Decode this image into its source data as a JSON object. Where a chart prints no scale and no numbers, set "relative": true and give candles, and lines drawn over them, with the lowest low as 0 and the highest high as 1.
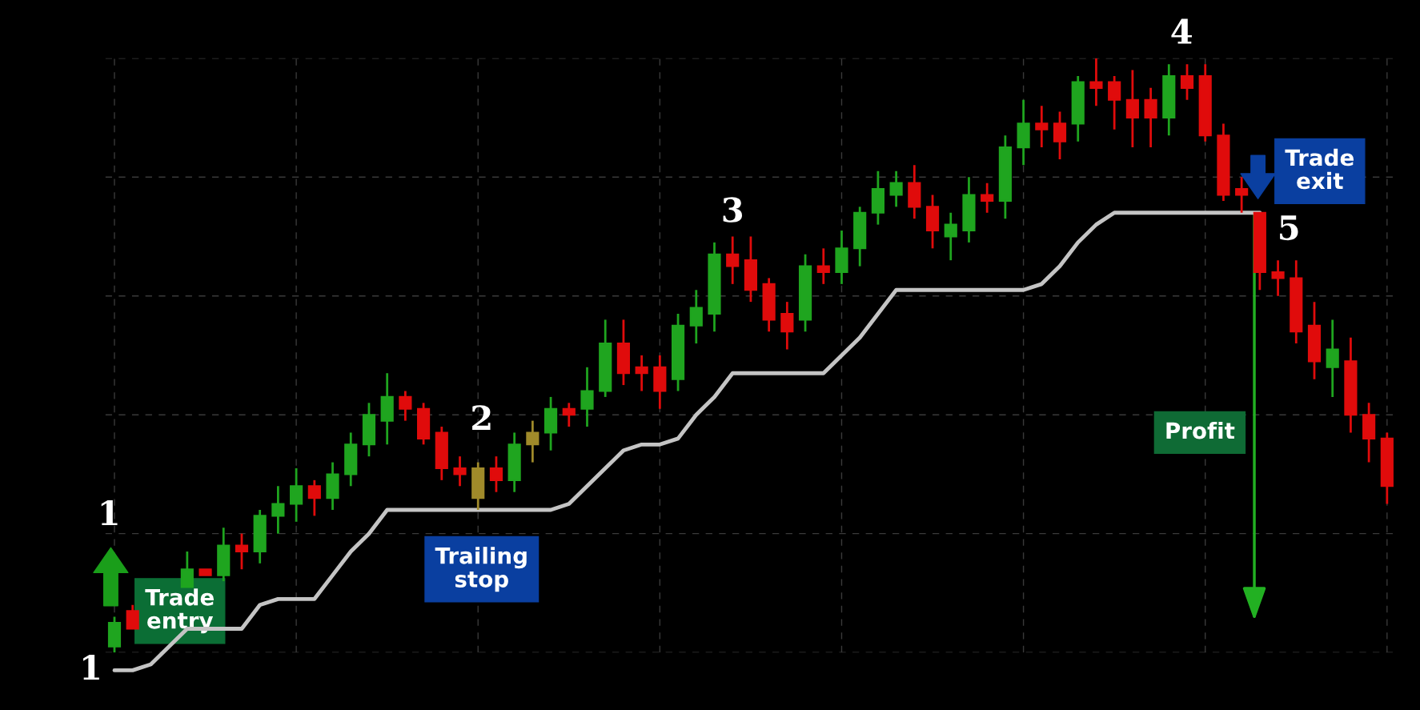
{
  "chart_data": {
    "type": "candlestick",
    "relative": true,
    "grid": true,
    "categories": [
      null,
      null,
      null,
      null,
      null,
      null,
      null,
      null,
      null,
      null,
      null,
      null,
      null,
      null,
      null,
      null,
      null,
      null,
      null,
      null,
      null,
      null,
      null,
      null,
      null,
      null,
      null,
      null,
      null,
      null,
      null,
      null,
      null,
      null,
      null,
      null,
      null,
      null,
      null,
      null,
      null,
      null,
      null,
      null,
      null,
      null,
      null,
      null,
      null,
      null,
      null,
      null,
      null,
      null,
      null,
      null,
      null,
      null,
      null,
      null,
      null,
      null,
      null,
      null,
      null,
      null,
      null,
      null,
      null,
      null,
      null
    ],
    "ohlc": [
      [
        0.01,
        0.06,
        0.0,
        0.05
      ],
      [
        0.07,
        0.08,
        0.04,
        0.04
      ],
      null,
      null,
      [
        0.11,
        0.17,
        0.11,
        0.14
      ],
      [
        0.14,
        0.14,
        0.13,
        0.13
      ],
      [
        0.13,
        0.21,
        0.12,
        0.18
      ],
      [
        0.18,
        0.2,
        0.14,
        0.17
      ],
      [
        0.17,
        0.24,
        0.15,
        0.23
      ],
      [
        0.23,
        0.28,
        0.2,
        0.25
      ],
      [
        0.25,
        0.31,
        0.22,
        0.28
      ],
      [
        0.28,
        0.29,
        0.23,
        0.26
      ],
      [
        0.26,
        0.32,
        0.24,
        0.3
      ],
      [
        0.3,
        0.37,
        0.28,
        0.35
      ],
      [
        0.35,
        0.42,
        0.33,
        0.4
      ],
      [
        0.39,
        0.47,
        0.35,
        0.43
      ],
      [
        0.43,
        0.44,
        0.39,
        0.41
      ],
      [
        0.41,
        0.42,
        0.35,
        0.36
      ],
      [
        0.37,
        0.38,
        0.29,
        0.31
      ],
      [
        0.31,
        0.33,
        0.28,
        0.3
      ],
      [
        0.26,
        0.32,
        0.24,
        0.31
      ],
      [
        0.31,
        0.33,
        0.27,
        0.29
      ],
      [
        0.29,
        0.37,
        0.27,
        0.35
      ],
      [
        0.35,
        0.39,
        0.32,
        0.37
      ],
      [
        0.37,
        0.43,
        0.34,
        0.41
      ],
      [
        0.41,
        0.42,
        0.38,
        0.4
      ],
      [
        0.41,
        0.48,
        0.38,
        0.44
      ],
      [
        0.44,
        0.56,
        0.43,
        0.52
      ],
      [
        0.52,
        0.56,
        0.45,
        0.47
      ],
      [
        0.48,
        0.5,
        0.44,
        0.47
      ],
      [
        0.48,
        0.5,
        0.41,
        0.44
      ],
      [
        0.46,
        0.57,
        0.44,
        0.55
      ],
      [
        0.55,
        0.61,
        0.52,
        0.58
      ],
      [
        0.57,
        0.69,
        0.54,
        0.67
      ],
      [
        0.67,
        0.7,
        0.62,
        0.65
      ],
      [
        0.66,
        0.7,
        0.59,
        0.61
      ],
      [
        0.62,
        0.63,
        0.54,
        0.56
      ],
      [
        0.57,
        0.59,
        0.51,
        0.54
      ],
      [
        0.56,
        0.67,
        0.54,
        0.65
      ],
      [
        0.65,
        0.68,
        0.62,
        0.64
      ],
      [
        0.64,
        0.71,
        0.62,
        0.68
      ],
      [
        0.68,
        0.75,
        0.65,
        0.74
      ],
      [
        0.74,
        0.81,
        0.72,
        0.78
      ],
      [
        0.77,
        0.81,
        0.75,
        0.79
      ],
      [
        0.79,
        0.82,
        0.73,
        0.75
      ],
      [
        0.75,
        0.77,
        0.68,
        0.71
      ],
      [
        0.7,
        0.74,
        0.66,
        0.72
      ],
      [
        0.71,
        0.8,
        0.69,
        0.77
      ],
      [
        0.77,
        0.79,
        0.74,
        0.76
      ],
      [
        0.76,
        0.87,
        0.73,
        0.85
      ],
      [
        0.85,
        0.93,
        0.82,
        0.89
      ],
      [
        0.89,
        0.92,
        0.85,
        0.88
      ],
      [
        0.89,
        0.91,
        0.83,
        0.86
      ],
      [
        0.89,
        0.97,
        0.86,
        0.96
      ],
      [
        0.96,
        1.0,
        0.92,
        0.95
      ],
      [
        0.96,
        0.97,
        0.88,
        0.93
      ],
      [
        0.93,
        0.98,
        0.85,
        0.9
      ],
      [
        0.93,
        0.95,
        0.85,
        0.9
      ],
      [
        0.9,
        0.99,
        0.87,
        0.97
      ],
      [
        0.97,
        0.99,
        0.93,
        0.95
      ],
      [
        0.97,
        0.99,
        0.86,
        0.87
      ],
      [
        0.87,
        0.89,
        0.76,
        0.77
      ],
      [
        0.78,
        0.8,
        0.74,
        0.77
      ],
      [
        0.74,
        0.74,
        0.61,
        0.64
      ],
      [
        0.64,
        0.66,
        0.6,
        0.63
      ],
      [
        0.63,
        0.66,
        0.52,
        0.54
      ],
      [
        0.55,
        0.59,
        0.46,
        0.49
      ],
      [
        0.48,
        0.56,
        0.43,
        0.51
      ],
      [
        0.49,
        0.53,
        0.37,
        0.4
      ],
      [
        0.4,
        0.42,
        0.32,
        0.36
      ],
      [
        0.36,
        0.37,
        0.25,
        0.28
      ]
    ],
    "colors": [
      "#1fa51f",
      "#e00b0b",
      null,
      null,
      "#1fa51f",
      "#e00b0b",
      "#1fa51f",
      "#e00b0b",
      "#1fa51f",
      "#1fa51f",
      "#1fa51f",
      "#e00b0b",
      "#1fa51f",
      "#1fa51f",
      "#1fa51f",
      "#1fa51f",
      "#e00b0b",
      "#e00b0b",
      "#e00b0b",
      "#e00b0b",
      "#a08a2a",
      "#e00b0b",
      "#1fa51f",
      "#a08a2a",
      "#1fa51f",
      "#e00b0b",
      "#1fa51f",
      "#1fa51f",
      "#e00b0b",
      "#e00b0b",
      "#e00b0b",
      "#1fa51f",
      "#1fa51f",
      "#1fa51f",
      "#e00b0b",
      "#e00b0b",
      "#e00b0b",
      "#e00b0b",
      "#1fa51f",
      "#e00b0b",
      "#1fa51f",
      "#1fa51f",
      "#1fa51f",
      "#1fa51f",
      "#e00b0b",
      "#e00b0b",
      "#1fa51f",
      "#1fa51f",
      "#e00b0b",
      "#1fa51f",
      "#1fa51f",
      "#e00b0b",
      "#e00b0b",
      "#1fa51f",
      "#e00b0b",
      "#e00b0b",
      "#e00b0b",
      "#e00b0b",
      "#1fa51f",
      "#e00b0b",
      "#e00b0b",
      "#e00b0b",
      "#e00b0b",
      "#e00b0b",
      "#e00b0b",
      "#e00b0b",
      "#e00b0b",
      "#1fa51f",
      "#e00b0b",
      "#e00b0b",
      "#e00b0b"
    ],
    "series": [
      {
        "type": "line",
        "color": "#c4c4c4",
        "values": [
          -0.03,
          -0.03,
          -0.02,
          0.01,
          0.04,
          0.04,
          0.04,
          0.04,
          0.08,
          0.09,
          0.09,
          0.09,
          0.13,
          0.17,
          0.2,
          0.24,
          0.24,
          0.24,
          0.24,
          0.24,
          0.24,
          0.24,
          0.24,
          0.24,
          0.24,
          0.25,
          0.28,
          0.31,
          0.34,
          0.35,
          0.35,
          0.36,
          0.4,
          0.43,
          0.47,
          0.47,
          0.47,
          0.47,
          0.47,
          0.47,
          0.5,
          0.53,
          0.57,
          0.61,
          0.61,
          0.61,
          0.61,
          0.61,
          0.61,
          0.61,
          0.61,
          0.62,
          0.65,
          0.69,
          0.72,
          0.74,
          0.74,
          0.74,
          0.74,
          0.74,
          0.74,
          0.74,
          0.74,
          0.74,
          null,
          null,
          null,
          null,
          null,
          null,
          null
        ]
      }
    ],
    "annotations": [
      "1",
      "1",
      "Trade entry",
      "Trailing stop",
      "2",
      "3",
      "4",
      "5",
      "Trade exit",
      "Profit"
    ]
  }
}
